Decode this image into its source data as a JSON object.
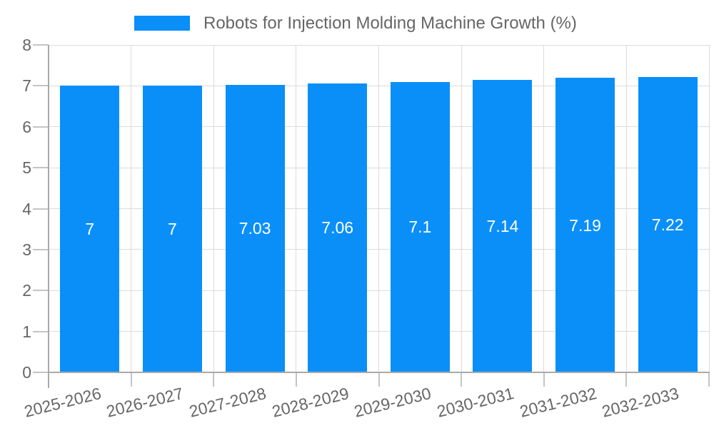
{
  "chart_data": {
    "type": "bar",
    "title": "Robots for Injection Molding Machine Growth (%)",
    "series_name": "Robots for Injection Molding Machine Growth (%)",
    "categories": [
      "2025-2026",
      "2026-2027",
      "2027-2028",
      "2028-2029",
      "2029-2030",
      "2030-2031",
      "2031-2032",
      "2032-2033"
    ],
    "values": [
      7,
      7,
      7.03,
      7.06,
      7.1,
      7.14,
      7.19,
      7.22
    ],
    "bar_labels": [
      "7",
      "7",
      "7.03",
      "7.06",
      "7.1",
      "7.14",
      "7.19",
      "7.22"
    ],
    "xlabel": "",
    "ylabel": "",
    "ylim": [
      0,
      8
    ],
    "yticks": [
      0,
      1,
      2,
      3,
      4,
      5,
      6,
      7,
      8
    ],
    "grid": true,
    "legend_position": "top",
    "colors": {
      "bar": "#0A8FF9",
      "bar_label": "#ffffff",
      "axis_text": "#666666",
      "gridline": "#dcdcdc",
      "tick": "#c4c4c4",
      "axis_border": "#a9a9a9"
    }
  }
}
